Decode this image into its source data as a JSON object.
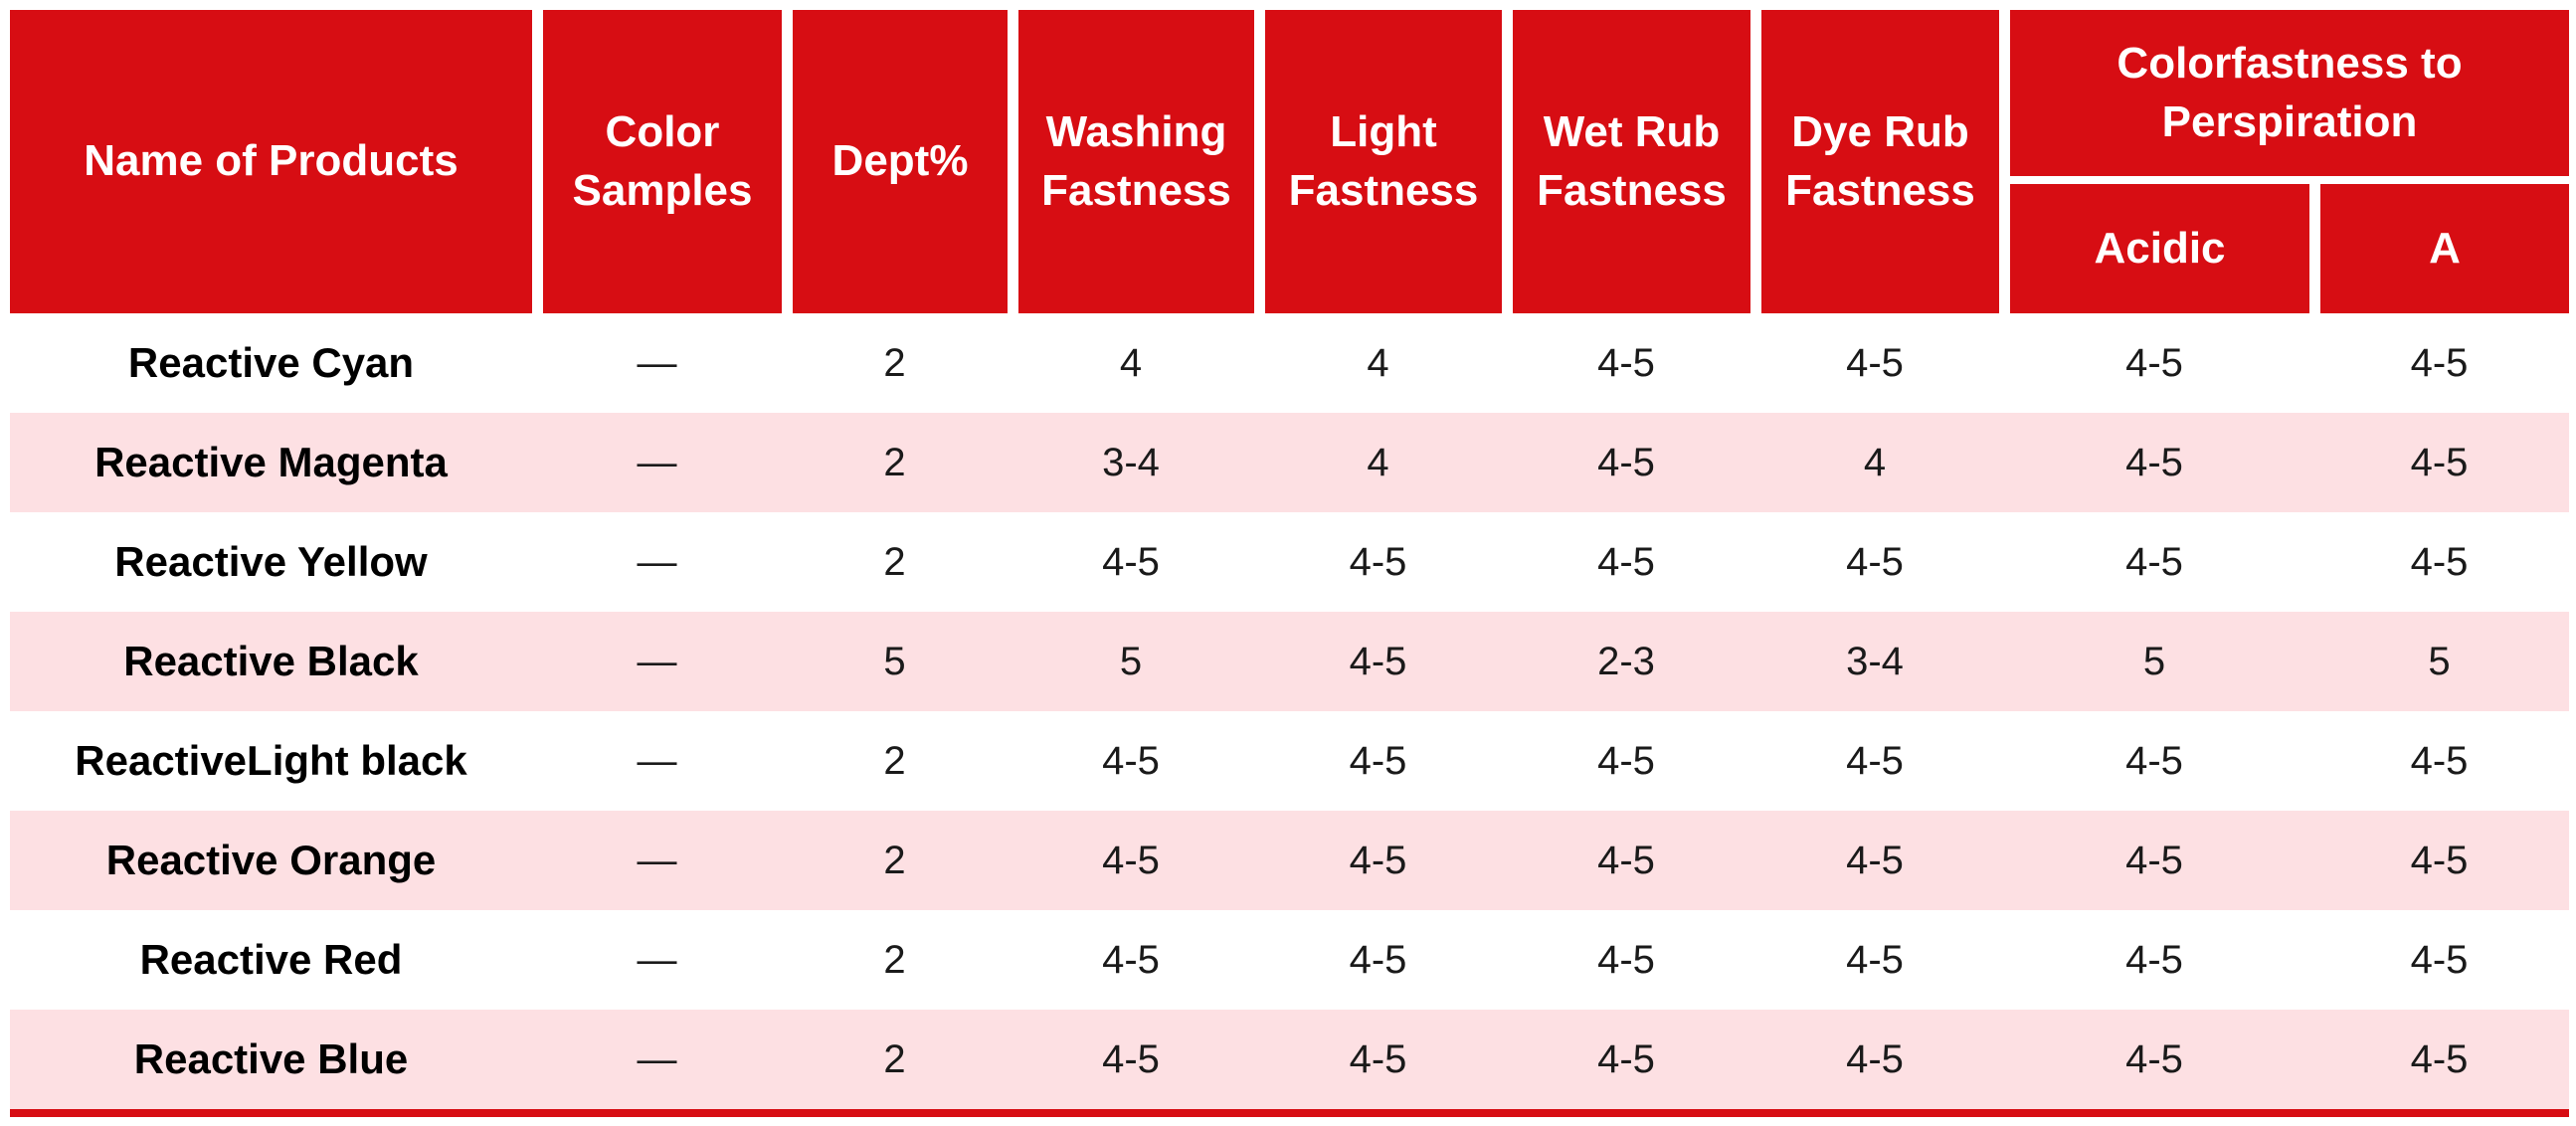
{
  "table": {
    "headers": [
      "Name of Products",
      "Color Samples",
      "Dept%",
      "Washing Fastness",
      "Light Fastness",
      "Wet Rub Fastness",
      "Dye Rub Fastness"
    ],
    "group_header": {
      "label": "Colorfastness to Perspiration",
      "children": [
        "Acidic",
        "A"
      ]
    },
    "rows": [
      [
        "Reactive Cyan",
        "—",
        "2",
        "4",
        "4",
        "4-5",
        "4-5",
        "4-5",
        "4-5"
      ],
      [
        "Reactive Magenta",
        "—",
        "2",
        "3-4",
        "4",
        "4-5",
        "4",
        "4-5",
        "4-5"
      ],
      [
        "Reactive Yellow",
        "—",
        "2",
        "4-5",
        "4-5",
        "4-5",
        "4-5",
        "4-5",
        "4-5"
      ],
      [
        "Reactive Black",
        "—",
        "5",
        "5",
        "4-5",
        "2-3",
        "3-4",
        "5",
        "5"
      ],
      [
        "ReactiveLight black",
        "—",
        "2",
        "4-5",
        "4-5",
        "4-5",
        "4-5",
        "4-5",
        "4-5"
      ],
      [
        "Reactive Orange",
        "—",
        "2",
        "4-5",
        "4-5",
        "4-5",
        "4-5",
        "4-5",
        "4-5"
      ],
      [
        "Reactive Red",
        "—",
        "2",
        "4-5",
        "4-5",
        "4-5",
        "4-5",
        "4-5",
        "4-5"
      ],
      [
        "Reactive Blue",
        "—",
        "2",
        "4-5",
        "4-5",
        "4-5",
        "4-5",
        "4-5",
        "4-5"
      ]
    ],
    "colors": {
      "header_red": "#d70d13",
      "row_pink": "#fde0e3",
      "row_white": "#ffffff",
      "header_text": "#ffffff",
      "body_text": "#1a1a1a",
      "bottom_rule": "#d70d13"
    }
  }
}
